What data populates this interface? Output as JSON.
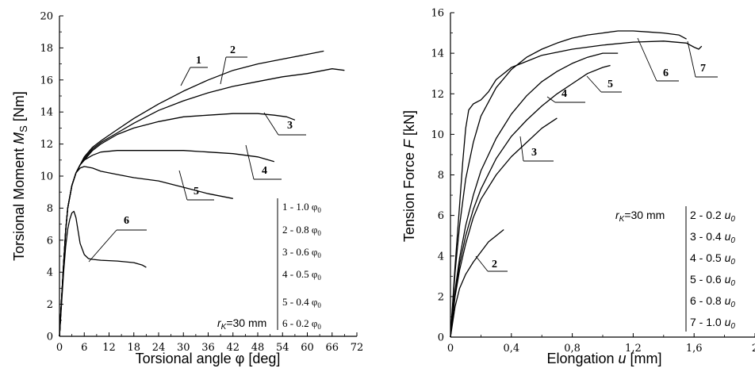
{
  "chart_data": [
    {
      "type": "line",
      "xlabel": "Torsional angle φ [deg]",
      "ylabel_text": "Torsional Moment ",
      "ylabel_symbol": "M",
      "ylabel_sub": "S",
      "ylabel_unit": " [Nm]",
      "xlim": [
        0,
        72
      ],
      "ylim": [
        0,
        20
      ],
      "xticks": [
        "0",
        "6",
        "12",
        "18",
        "24",
        "30",
        "36",
        "42",
        "48",
        "54",
        "60",
        "66",
        "72"
      ],
      "yticks": [
        "0",
        "2",
        "4",
        "6",
        "8",
        "10",
        "12",
        "14",
        "16",
        "18",
        "20"
      ],
      "grid": false,
      "series": [
        {
          "name": "1",
          "x": [
            0,
            0.5,
            1,
            1.5,
            2,
            3,
            4,
            5,
            6,
            8,
            10,
            14,
            18,
            24,
            30,
            36,
            42,
            48,
            54,
            60,
            64
          ],
          "y": [
            0,
            2.3,
            4.5,
            6.6,
            8.0,
            9.4,
            10.2,
            10.7,
            11.2,
            11.8,
            12.2,
            12.9,
            13.6,
            14.5,
            15.3,
            16.0,
            16.6,
            17.0,
            17.3,
            17.6,
            17.8
          ]
        },
        {
          "name": "2",
          "x": [
            0,
            0.5,
            1,
            1.5,
            2,
            3,
            4,
            5,
            6,
            8,
            10,
            14,
            18,
            24,
            30,
            36,
            42,
            48,
            54,
            60,
            66,
            69
          ],
          "y": [
            0,
            2.3,
            4.5,
            6.6,
            8.0,
            9.4,
            10.2,
            10.7,
            11.1,
            11.7,
            12.1,
            12.7,
            13.3,
            14.1,
            14.7,
            15.2,
            15.6,
            15.9,
            16.2,
            16.4,
            16.7,
            16.6
          ]
        },
        {
          "name": "3",
          "x": [
            0,
            0.5,
            1,
            1.5,
            2,
            3,
            4,
            5,
            6,
            8,
            10,
            14,
            18,
            24,
            30,
            36,
            42,
            48,
            52,
            55,
            57
          ],
          "y": [
            0,
            2.3,
            4.5,
            6.6,
            8.0,
            9.4,
            10.2,
            10.7,
            11.0,
            11.6,
            12.0,
            12.6,
            13.0,
            13.4,
            13.7,
            13.8,
            13.9,
            13.9,
            13.8,
            13.7,
            13.5
          ]
        },
        {
          "name": "4",
          "x": [
            0,
            0.5,
            1,
            1.5,
            2,
            3,
            4,
            5,
            6,
            8,
            10,
            14,
            18,
            24,
            30,
            36,
            42,
            48,
            52
          ],
          "y": [
            0,
            2.3,
            4.5,
            6.6,
            8.0,
            9.4,
            10.2,
            10.7,
            11.0,
            11.3,
            11.5,
            11.6,
            11.6,
            11.6,
            11.6,
            11.5,
            11.4,
            11.2,
            10.9
          ]
        },
        {
          "name": "5",
          "x": [
            0,
            0.5,
            1,
            1.5,
            2,
            3,
            4,
            5,
            6,
            8,
            10,
            14,
            18,
            24,
            30,
            36,
            42
          ],
          "y": [
            0,
            2.3,
            4.5,
            6.6,
            8.0,
            9.4,
            10.2,
            10.5,
            10.6,
            10.5,
            10.3,
            10.1,
            9.9,
            9.7,
            9.3,
            8.9,
            8.6
          ]
        },
        {
          "name": "6",
          "x": [
            0,
            0.5,
            1,
            1.5,
            2,
            2.5,
            3,
            3.5,
            4,
            4.5,
            5,
            6,
            7,
            8,
            10,
            14,
            18,
            20,
            21
          ],
          "y": [
            0,
            2.0,
            4.0,
            5.6,
            6.7,
            7.3,
            7.7,
            7.8,
            7.4,
            6.6,
            5.8,
            5.1,
            4.85,
            4.8,
            4.75,
            4.7,
            4.6,
            4.45,
            4.3
          ]
        }
      ],
      "annotations": [
        "1",
        "2",
        "3",
        "4",
        "5",
        "6"
      ],
      "legend": {
        "placement": "bottom-right",
        "prefix_italic": "r",
        "prefix_sub": "K",
        "prefix_rest": "=30 mm",
        "symbol": "φ",
        "symbol_sub": "0",
        "entries": [
          "1 - 1.0 ",
          "2 - 0.8 ",
          "3 - 0.6 ",
          "4 - 0.5 ",
          "5 - 0.4 ",
          "6 - 0.2 "
        ]
      }
    },
    {
      "type": "line",
      "xlabel_text": "Elongation ",
      "xlabel_symbol": "u",
      "xlabel_unit": " [mm]",
      "ylabel_text": "Tension Force ",
      "ylabel_symbol": "F",
      "ylabel_unit": " [kN]",
      "xlim": [
        0,
        2
      ],
      "ylim": [
        0,
        16
      ],
      "xticks": [
        "0",
        "0,4",
        "0,8",
        "1,2",
        "1,6",
        "2"
      ],
      "yticks": [
        "0",
        "2",
        "4",
        "6",
        "8",
        "10",
        "12",
        "14",
        "16"
      ],
      "grid": false,
      "series": [
        {
          "name": "2",
          "x": [
            0,
            0.03,
            0.06,
            0.1,
            0.15,
            0.2,
            0.25,
            0.3,
            0.35
          ],
          "y": [
            0,
            1.5,
            2.4,
            3.1,
            3.7,
            4.2,
            4.7,
            5.0,
            5.3
          ]
        },
        {
          "name": "3",
          "x": [
            0,
            0.03,
            0.06,
            0.1,
            0.15,
            0.2,
            0.3,
            0.4,
            0.5,
            0.6,
            0.7
          ],
          "y": [
            0,
            2.0,
            3.3,
            4.6,
            5.9,
            6.8,
            8.0,
            8.9,
            9.6,
            10.3,
            10.8
          ]
        },
        {
          "name": "4",
          "x": [
            0,
            0.03,
            0.06,
            0.1,
            0.15,
            0.2,
            0.3,
            0.4,
            0.5,
            0.6,
            0.7,
            0.8,
            0.9,
            1.0,
            1.05
          ],
          "y": [
            0,
            2.2,
            3.6,
            5.0,
            6.3,
            7.3,
            8.8,
            9.9,
            10.7,
            11.4,
            12.0,
            12.5,
            13.0,
            13.3,
            13.4
          ]
        },
        {
          "name": "5",
          "x": [
            0,
            0.03,
            0.06,
            0.1,
            0.15,
            0.2,
            0.3,
            0.4,
            0.5,
            0.6,
            0.7,
            0.8,
            0.9,
            1.0,
            1.1
          ],
          "y": [
            0,
            2.3,
            3.9,
            5.5,
            7.0,
            8.2,
            9.8,
            11.0,
            11.9,
            12.6,
            13.1,
            13.5,
            13.8,
            14.0,
            14.0
          ]
        },
        {
          "name": "6",
          "x": [
            0,
            0.03,
            0.06,
            0.1,
            0.15,
            0.2,
            0.3,
            0.4,
            0.5,
            0.6,
            0.7,
            0.8,
            0.9,
            1.0,
            1.1,
            1.2,
            1.3,
            1.4,
            1.5,
            1.55
          ],
          "y": [
            0,
            3.2,
            5.5,
            7.8,
            9.6,
            10.9,
            12.3,
            13.2,
            13.8,
            14.2,
            14.5,
            14.75,
            14.9,
            15.0,
            15.1,
            15.1,
            15.05,
            15.0,
            14.9,
            14.7
          ]
        },
        {
          "name": "7",
          "x": [
            0,
            0.03,
            0.06,
            0.08,
            0.1,
            0.12,
            0.15,
            0.2,
            0.25,
            0.3,
            0.4,
            0.5,
            0.6,
            0.8,
            1.0,
            1.2,
            1.4,
            1.55,
            1.6,
            1.63,
            1.65
          ],
          "y": [
            0,
            3.5,
            6.5,
            8.6,
            10.3,
            11.2,
            11.5,
            11.7,
            12.1,
            12.7,
            13.3,
            13.6,
            13.9,
            14.2,
            14.4,
            14.55,
            14.6,
            14.5,
            14.3,
            14.2,
            14.35
          ]
        }
      ],
      "annotations": [
        "2",
        "3",
        "4",
        "5",
        "6",
        "7"
      ],
      "legend": {
        "placement": "bottom-right",
        "prefix_italic": "r",
        "prefix_sub": "K",
        "prefix_rest": "=30 mm",
        "symbol": "u",
        "symbol_sub": "0",
        "entries": [
          "2 - 0.2 ",
          "3 - 0.4 ",
          "4 - 0.5 ",
          "5 - 0.6 ",
          "6 - 0.8 ",
          "7 - 1.0 "
        ]
      }
    }
  ]
}
